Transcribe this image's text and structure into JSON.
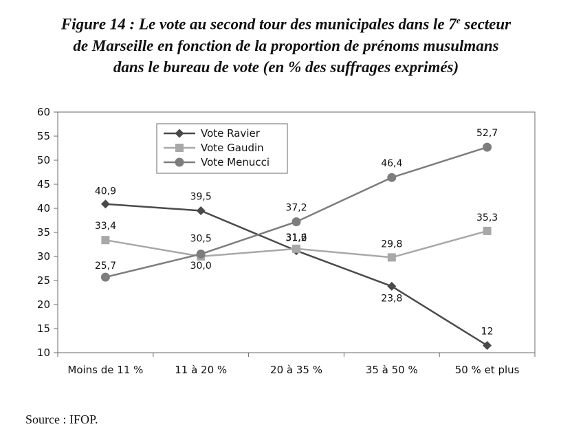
{
  "title": {
    "line1_a": "Figure 14 : Le vote au second tour des municipales dans le 7",
    "line1_sup": "e",
    "line1_b": " secteur",
    "line2": "de Marseille en fonction de la proportion de prénoms musulmans",
    "line3": "dans le bureau de vote (en % des suffrages exprimés)"
  },
  "source": "Source : IFOP.",
  "chart_data": {
    "type": "line",
    "categories": [
      "Moins de 11 %",
      "11 à 20 %",
      "20 à 35 %",
      "35 à 50 %",
      "50 % et plus"
    ],
    "ylim": [
      10,
      60
    ],
    "yticks": [
      "60",
      "55",
      "50",
      "45",
      "40",
      "35",
      "30",
      "25",
      "20",
      "15",
      "10"
    ],
    "grid": false,
    "legend_position": "top-left",
    "series": [
      {
        "name": "Vote Ravier",
        "marker": "diamond",
        "color": "#4a4a4a",
        "values": [
          40.9,
          39.5,
          31.2,
          23.8,
          11.5
        ],
        "labels": [
          "40,9",
          "39,5",
          "31,2",
          "23,8",
          "12"
        ]
      },
      {
        "name": "Vote Gaudin",
        "marker": "square",
        "color": "#a8a8a8",
        "values": [
          33.4,
          30.0,
          31.6,
          29.8,
          35.3
        ],
        "labels": [
          "33,4",
          "30,0",
          "31,6",
          "29,8",
          "35,3"
        ]
      },
      {
        "name": "Vote Menucci",
        "marker": "circle",
        "color": "#7d7d7d",
        "values": [
          25.7,
          30.5,
          37.2,
          46.4,
          52.7
        ],
        "labels": [
          "25,7",
          "30,5",
          "37,2",
          "46,4",
          "52,7"
        ]
      }
    ]
  }
}
